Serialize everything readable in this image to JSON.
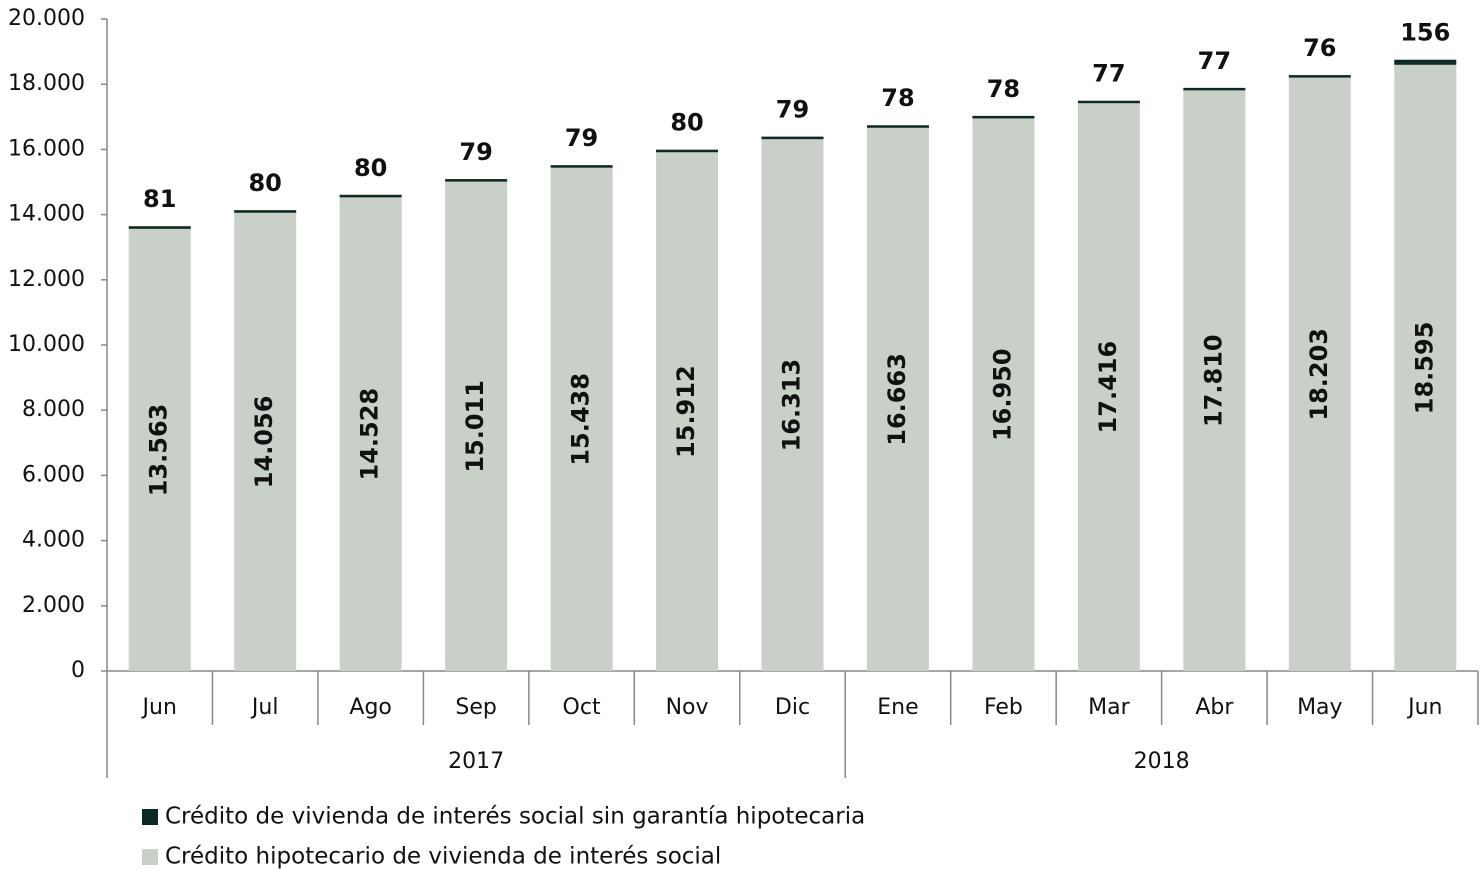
{
  "chart_data": {
    "type": "stacked_bar",
    "categories": [
      "Jun",
      "Jul",
      "Ago",
      "Sep",
      "Oct",
      "Nov",
      "Dic",
      "Ene",
      "Feb",
      "Mar",
      "Abr",
      "May",
      "Jun"
    ],
    "groups": [
      {
        "label": "2017",
        "span": 7
      },
      {
        "label": "2018",
        "span": 6
      }
    ],
    "series": [
      {
        "name": "Crédito hipotecario de vivienda de interés social",
        "color": "#c8d0c8",
        "values": [
          13563,
          14056,
          14528,
          15011,
          15438,
          15912,
          16313,
          16663,
          16950,
          17416,
          17810,
          18203,
          18595
        ],
        "value_labels": [
          "13.563",
          "14.056",
          "14.528",
          "15.011",
          "15.438",
          "15.912",
          "16.313",
          "16.663",
          "16.950",
          "17.416",
          "17.810",
          "18.203",
          "18.595"
        ]
      },
      {
        "name": "Crédito de vivienda de interés social sin garantía hipotecaria",
        "color": "#0c2a25",
        "values": [
          81,
          80,
          80,
          79,
          79,
          80,
          79,
          78,
          78,
          77,
          77,
          76,
          156
        ]
      }
    ],
    "ylim": [
      0,
      20000
    ],
    "yticks": [
      0,
      {
        "value": 2000,
        "label": "2.000"
      },
      {
        "value": 4000,
        "label": "4.000"
      },
      {
        "value": 6000,
        "label": "6.000"
      },
      {
        "value": 8000,
        "label": "8.000"
      },
      {
        "value": 10000,
        "label": "10.000"
      },
      {
        "value": 12000,
        "label": "12.000"
      },
      {
        "value": 14000,
        "label": "14.000"
      },
      {
        "value": 16000,
        "label": "16.000"
      },
      {
        "value": 18000,
        "label": "18.000"
      },
      {
        "value": 20000,
        "label": "20.000"
      }
    ],
    "grid": false
  }
}
